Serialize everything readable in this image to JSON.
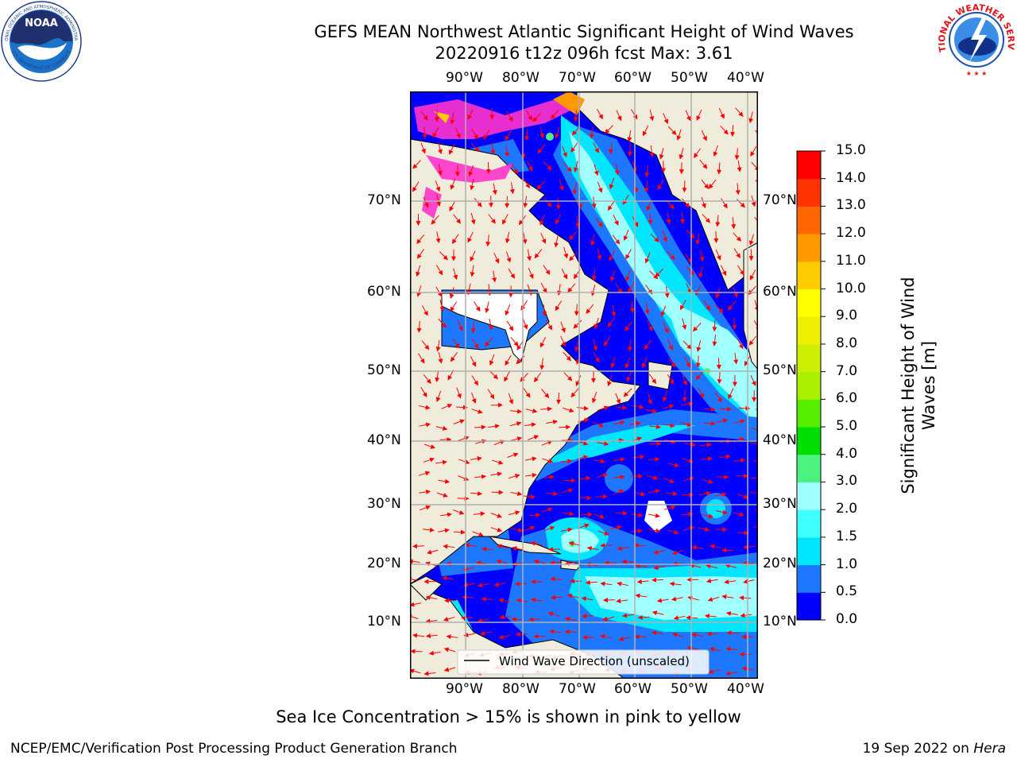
{
  "header": {
    "title_line1": "GEFS MEAN Northwest Atlantic Significant Height of Wind Waves",
    "title_line2": "20220916 t12z 096h fcst   Max: 3.61"
  },
  "logos": {
    "left": "NOAA",
    "left_ring_top": "NATIONAL OCEANIC AND ATMOSPHERIC ADMINISTRATION",
    "left_ring_bottom": "U.S. DEPARTMENT OF COMMERCE",
    "right_ring": "NATIONAL WEATHER SERVICE"
  },
  "map": {
    "lon_ticks": [
      "90°W",
      "80°W",
      "70°W",
      "60°W",
      "50°W",
      "40°W"
    ],
    "lat_ticks": [
      "70°N",
      "60°N",
      "50°N",
      "40°N",
      "30°N",
      "20°N",
      "10°N"
    ],
    "legend_label": "Wind Wave Direction (unscaled)",
    "colors": {
      "land": "#efecdb",
      "ocean_low": "#0000ff",
      "ocean_mid": "#1e78ff",
      "ocean_high": "#00e6ff",
      "ocean_peak": "#a0ffff",
      "arrows": "#ff0000",
      "ice": "#ff33cc"
    }
  },
  "colorbar": {
    "label": "Significant Height of Wind Waves [m]",
    "ticks": [
      "0.0",
      "0.5",
      "1.0",
      "1.5",
      "2.0",
      "3.0",
      "4.0",
      "5.0",
      "6.0",
      "7.0",
      "8.0",
      "9.0",
      "10.0",
      "11.0",
      "12.0",
      "13.0",
      "14.0",
      "15.0"
    ],
    "colors": [
      "#0000ff",
      "#1e78ff",
      "#00e6ff",
      "#40ffff",
      "#a0ffff",
      "#4cf27f",
      "#00dd00",
      "#55ee00",
      "#aaee00",
      "#ccee00",
      "#eeee00",
      "#ffff00",
      "#ffcc00",
      "#ff9900",
      "#ff6600",
      "#ff3300",
      "#ff0000"
    ]
  },
  "footer": {
    "note": "Sea Ice Concentration > 15% is shown in pink to yellow",
    "left": "NCEP/EMC/Verification Post Processing Product Generation Branch",
    "right_date": "19 Sep 2022 on",
    "right_host": "Hera"
  }
}
